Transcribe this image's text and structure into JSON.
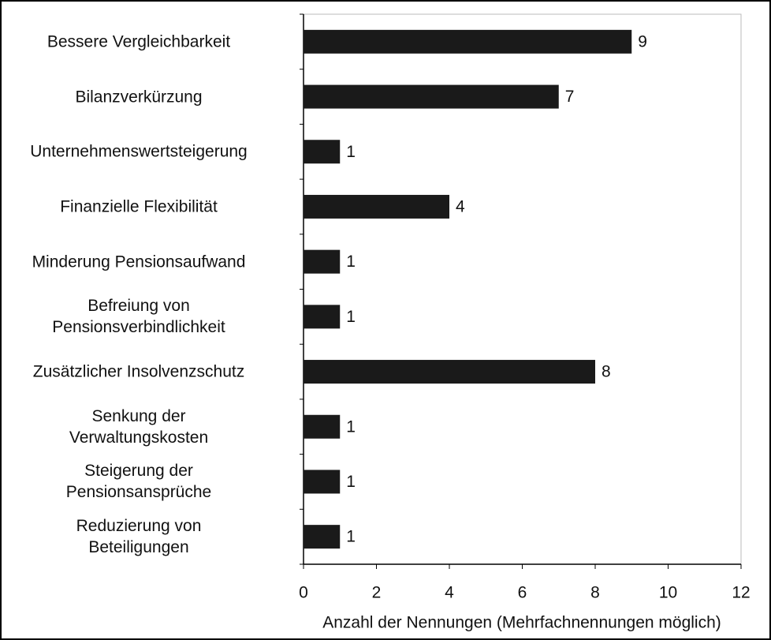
{
  "chart_data": {
    "type": "bar",
    "orientation": "horizontal",
    "categories": [
      "Bessere Vergleichbarkeit",
      "Bilanzverkürzung",
      "Unternehmenswertsteigerung",
      "Finanzielle Flexibilität",
      "Minderung Pensionsaufwand",
      "Befreiung von\nPensionsverbindlichkeit",
      "Zusätzlicher Insolvenzschutz",
      "Senkung der\nVerwaltungskosten",
      "Steigerung der\nPensionsansprüche",
      "Reduzierung von\nBeteiligungen"
    ],
    "values": [
      9,
      7,
      1,
      4,
      1,
      1,
      8,
      1,
      1,
      1
    ],
    "color": "#1a1a1a",
    "xlim": [
      0,
      12
    ],
    "xticks": [
      0,
      2,
      4,
      6,
      8,
      10,
      12
    ],
    "xlabel": "Anzahl der Nennungen (Mehrfachnennungen möglich)",
    "value_labels_shown": true
  }
}
